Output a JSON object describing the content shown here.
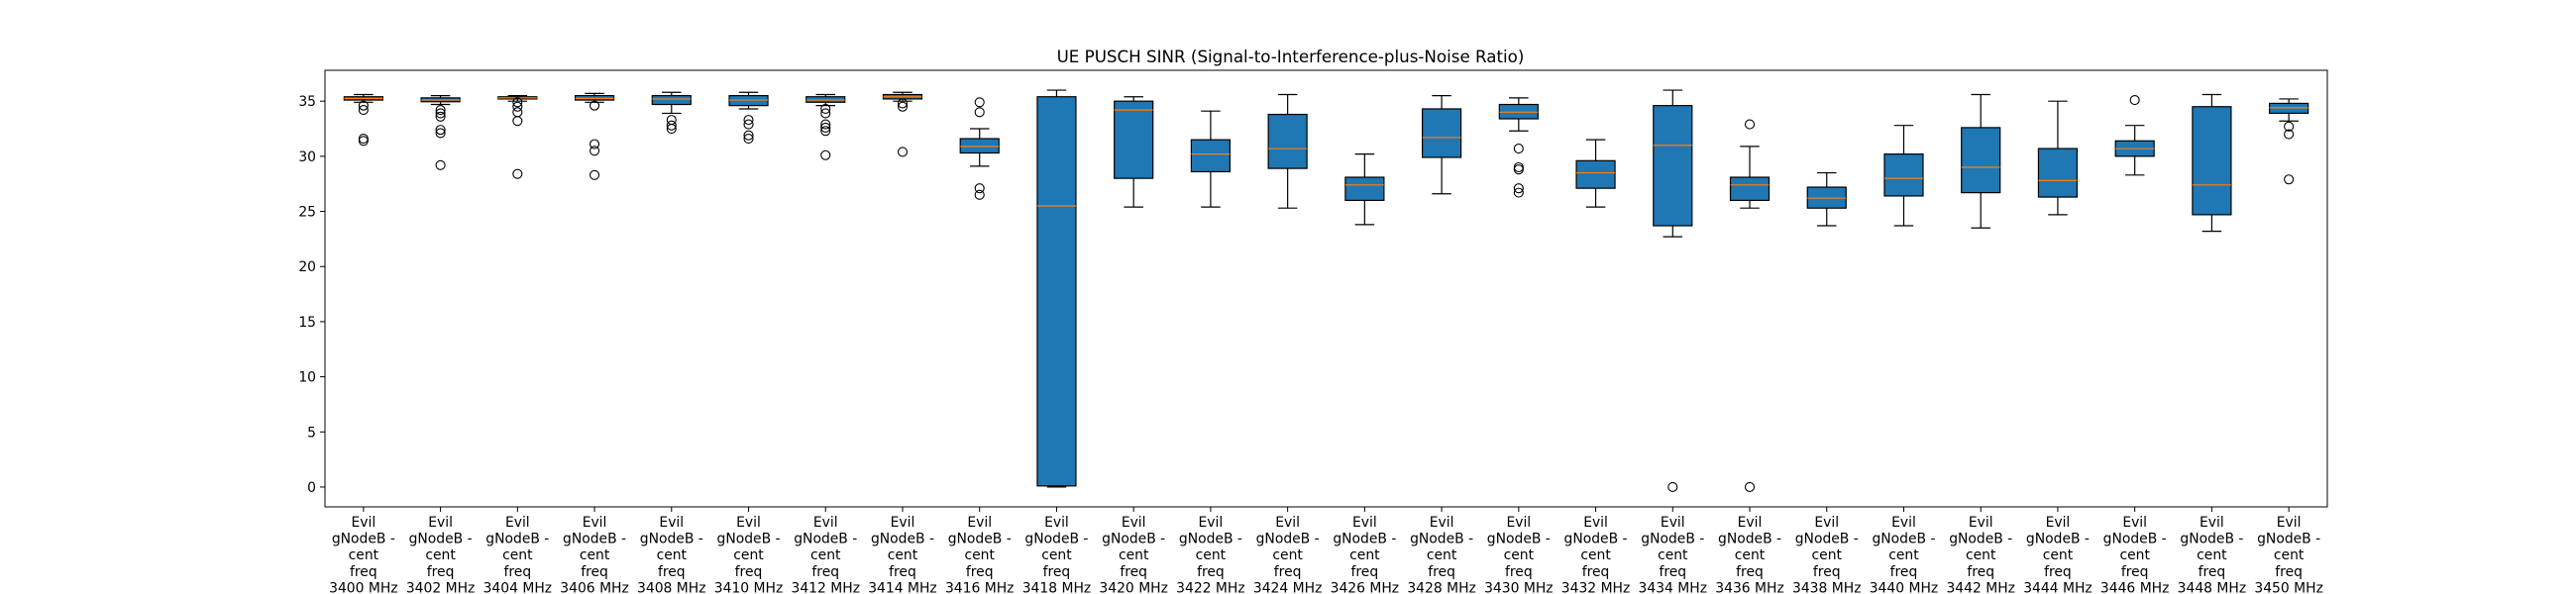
{
  "chart_data": {
    "type": "box",
    "title": "UE PUSCH SINR (Signal-to-Interference-plus-Noise Ratio)",
    "xlabel": "",
    "ylabel": "",
    "ylim": [
      -1.8,
      37.8
    ],
    "yticks": [
      0,
      5,
      10,
      15,
      20,
      25,
      30,
      35
    ],
    "grid": false,
    "legend": "none",
    "colors": {
      "box_fill": "#1f77b4",
      "median": "#ff7f0e",
      "line": "#000000"
    },
    "categories": [
      "Evil gNodeB - cent freq 3400 MHz",
      "Evil gNodeB - cent freq 3402 MHz",
      "Evil gNodeB - cent freq 3404 MHz",
      "Evil gNodeB - cent freq 3406 MHz",
      "Evil gNodeB - cent freq 3408 MHz",
      "Evil gNodeB - cent freq 3410 MHz",
      "Evil gNodeB - cent freq 3412 MHz",
      "Evil gNodeB - cent freq 3414 MHz",
      "Evil gNodeB - cent freq 3416 MHz",
      "Evil gNodeB - cent freq 3418 MHz",
      "Evil gNodeB - cent freq 3420 MHz",
      "Evil gNodeB - cent freq 3422 MHz",
      "Evil gNodeB - cent freq 3424 MHz",
      "Evil gNodeB - cent freq 3426 MHz",
      "Evil gNodeB - cent freq 3428 MHz",
      "Evil gNodeB - cent freq 3430 MHz",
      "Evil gNodeB - cent freq 3432 MHz",
      "Evil gNodeB - cent freq 3434 MHz",
      "Evil gNodeB - cent freq 3436 MHz",
      "Evil gNodeB - cent freq 3438 MHz",
      "Evil gNodeB - cent freq 3440 MHz",
      "Evil gNodeB - cent freq 3442 MHz",
      "Evil gNodeB - cent freq 3444 MHz",
      "Evil gNodeB - cent freq 3446 MHz",
      "Evil gNodeB - cent freq 3448 MHz",
      "Evil gNodeB - cent freq 3450 MHz"
    ],
    "label_lines": [
      [
        "Evil",
        "gNodeB -",
        "cent",
        "freq",
        "3400 MHz"
      ],
      [
        "Evil",
        "gNodeB -",
        "cent",
        "freq",
        "3402 MHz"
      ],
      [
        "Evil",
        "gNodeB -",
        "cent",
        "freq",
        "3404 MHz"
      ],
      [
        "Evil",
        "gNodeB -",
        "cent",
        "freq",
        "3406 MHz"
      ],
      [
        "Evil",
        "gNodeB -",
        "cent",
        "freq",
        "3408 MHz"
      ],
      [
        "Evil",
        "gNodeB -",
        "cent",
        "freq",
        "3410 MHz"
      ],
      [
        "Evil",
        "gNodeB -",
        "cent",
        "freq",
        "3412 MHz"
      ],
      [
        "Evil",
        "gNodeB -",
        "cent",
        "freq",
        "3414 MHz"
      ],
      [
        "Evil",
        "gNodeB -",
        "cent",
        "freq",
        "3416 MHz"
      ],
      [
        "Evil",
        "gNodeB -",
        "cent",
        "freq",
        "3418 MHz"
      ],
      [
        "Evil",
        "gNodeB -",
        "cent",
        "freq",
        "3420 MHz"
      ],
      [
        "Evil",
        "gNodeB -",
        "cent",
        "freq",
        "3422 MHz"
      ],
      [
        "Evil",
        "gNodeB -",
        "cent",
        "freq",
        "3424 MHz"
      ],
      [
        "Evil",
        "gNodeB -",
        "cent",
        "freq",
        "3426 MHz"
      ],
      [
        "Evil",
        "gNodeB -",
        "cent",
        "freq",
        "3428 MHz"
      ],
      [
        "Evil",
        "gNodeB -",
        "cent",
        "freq",
        "3430 MHz"
      ],
      [
        "Evil",
        "gNodeB -",
        "cent",
        "freq",
        "3432 MHz"
      ],
      [
        "Evil",
        "gNodeB -",
        "cent",
        "freq",
        "3434 MHz"
      ],
      [
        "Evil",
        "gNodeB -",
        "cent",
        "freq",
        "3436 MHz"
      ],
      [
        "Evil",
        "gNodeB -",
        "cent",
        "freq",
        "3438 MHz"
      ],
      [
        "Evil",
        "gNodeB -",
        "cent",
        "freq",
        "3440 MHz"
      ],
      [
        "Evil",
        "gNodeB -",
        "cent",
        "freq",
        "3442 MHz"
      ],
      [
        "Evil",
        "gNodeB -",
        "cent",
        "freq",
        "3444 MHz"
      ],
      [
        "Evil",
        "gNodeB -",
        "cent",
        "freq",
        "3446 MHz"
      ],
      [
        "Evil",
        "gNodeB -",
        "cent",
        "freq",
        "3448 MHz"
      ],
      [
        "Evil",
        "gNodeB -",
        "cent",
        "freq",
        "3450 MHz"
      ]
    ],
    "series": [
      {
        "whislo": 34.9,
        "q1": 35.1,
        "med": 35.25,
        "q3": 35.4,
        "whishi": 35.6,
        "fliers": [
          34.6,
          34.2,
          31.6,
          31.4
        ]
      },
      {
        "whislo": 34.7,
        "q1": 34.95,
        "med": 35.1,
        "q3": 35.3,
        "whishi": 35.5,
        "fliers": [
          34.2,
          33.9,
          33.6,
          32.4,
          32.1,
          29.2
        ]
      },
      {
        "whislo": 35.0,
        "q1": 35.2,
        "med": 35.3,
        "q3": 35.4,
        "whishi": 35.5,
        "fliers": [
          34.9,
          34.5,
          34.0,
          33.2,
          28.4
        ]
      },
      {
        "whislo": 34.9,
        "q1": 35.1,
        "med": 35.25,
        "q3": 35.5,
        "whishi": 35.7,
        "fliers": [
          34.6,
          31.1,
          30.5,
          28.3
        ]
      },
      {
        "whislo": 33.9,
        "q1": 34.7,
        "med": 35.2,
        "q3": 35.5,
        "whishi": 35.8,
        "fliers": [
          33.3,
          32.8,
          32.5
        ]
      },
      {
        "whislo": 34.3,
        "q1": 34.6,
        "med": 35.1,
        "q3": 35.5,
        "whishi": 35.8,
        "fliers": [
          33.3,
          32.9,
          31.9,
          31.6
        ]
      },
      {
        "whislo": 34.6,
        "q1": 34.9,
        "med": 35.1,
        "q3": 35.4,
        "whishi": 35.6,
        "fliers": [
          34.3,
          33.9,
          32.9,
          32.6,
          32.3,
          30.1
        ]
      },
      {
        "whislo": 35.0,
        "q1": 35.2,
        "med": 35.4,
        "q3": 35.6,
        "whishi": 35.8,
        "fliers": [
          34.8,
          34.5,
          30.4
        ]
      },
      {
        "whislo": 29.1,
        "q1": 30.3,
        "med": 30.9,
        "q3": 31.6,
        "whishi": 32.5,
        "fliers": [
          34.9,
          34.0,
          27.1,
          26.5
        ]
      },
      {
        "whislo": 0.0,
        "q1": 0.1,
        "med": 25.5,
        "q3": 35.4,
        "whishi": 36.0,
        "fliers": []
      },
      {
        "whislo": 25.4,
        "q1": 28.0,
        "med": 34.2,
        "q3": 35.0,
        "whishi": 35.4,
        "fliers": []
      },
      {
        "whislo": 25.4,
        "q1": 28.6,
        "med": 30.2,
        "q3": 31.5,
        "whishi": 34.1,
        "fliers": []
      },
      {
        "whislo": 25.3,
        "q1": 28.9,
        "med": 30.7,
        "q3": 33.8,
        "whishi": 35.6,
        "fliers": []
      },
      {
        "whislo": 23.8,
        "q1": 26.0,
        "med": 27.4,
        "q3": 28.1,
        "whishi": 30.2,
        "fliers": []
      },
      {
        "whislo": 26.6,
        "q1": 29.9,
        "med": 31.7,
        "q3": 34.3,
        "whishi": 35.5,
        "fliers": []
      },
      {
        "whislo": 32.3,
        "q1": 33.4,
        "med": 34.0,
        "q3": 34.7,
        "whishi": 35.3,
        "fliers": [
          30.7,
          29.0,
          28.8,
          27.1,
          26.7
        ]
      },
      {
        "whislo": 25.4,
        "q1": 27.1,
        "med": 28.5,
        "q3": 29.6,
        "whishi": 31.5,
        "fliers": []
      },
      {
        "whislo": 22.7,
        "q1": 23.7,
        "med": 31.0,
        "q3": 34.6,
        "whishi": 36.0,
        "fliers": [
          0.0
        ]
      },
      {
        "whislo": 25.3,
        "q1": 26.0,
        "med": 27.4,
        "q3": 28.1,
        "whishi": 30.9,
        "fliers": [
          32.9,
          0.0
        ]
      },
      {
        "whislo": 23.7,
        "q1": 25.3,
        "med": 26.2,
        "q3": 27.2,
        "whishi": 28.5,
        "fliers": []
      },
      {
        "whislo": 23.7,
        "q1": 26.4,
        "med": 28.0,
        "q3": 30.2,
        "whishi": 32.8,
        "fliers": []
      },
      {
        "whislo": 23.5,
        "q1": 26.7,
        "med": 29.0,
        "q3": 32.6,
        "whishi": 35.6,
        "fliers": []
      },
      {
        "whislo": 24.7,
        "q1": 26.3,
        "med": 27.8,
        "q3": 30.7,
        "whishi": 35.0,
        "fliers": []
      },
      {
        "whislo": 28.3,
        "q1": 30.0,
        "med": 30.7,
        "q3": 31.4,
        "whishi": 32.8,
        "fliers": [
          35.1
        ]
      },
      {
        "whislo": 23.2,
        "q1": 24.7,
        "med": 27.4,
        "q3": 34.5,
        "whishi": 35.6,
        "fliers": []
      },
      {
        "whislo": 33.2,
        "q1": 33.9,
        "med": 34.4,
        "q3": 34.8,
        "whishi": 35.2,
        "fliers": [
          32.7,
          32.0,
          27.9
        ]
      }
    ]
  }
}
